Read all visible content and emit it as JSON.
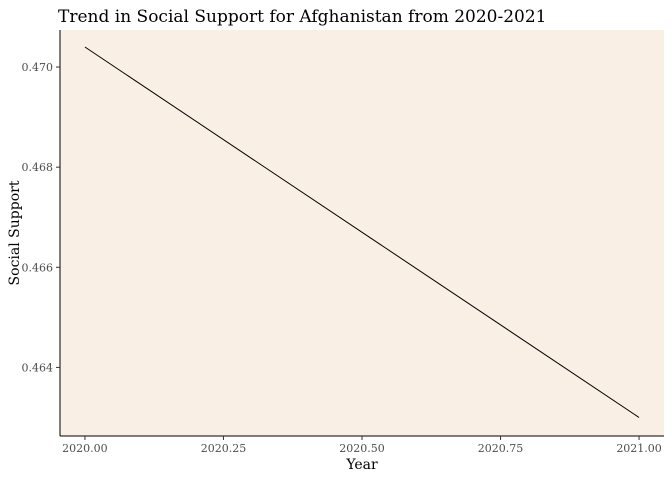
{
  "chart_data": {
    "type": "line",
    "title": "Trend in Social Support for Afghanistan from 2020-2021",
    "xlabel": "Year",
    "ylabel": "Social Support",
    "x_ticks": [
      "2020.00",
      "2020.25",
      "2020.50",
      "2020.75",
      "2021.00"
    ],
    "y_ticks": [
      "0.464",
      "0.466",
      "0.468",
      "0.470"
    ],
    "xlim": [
      2019.955,
      2021.045
    ],
    "ylim": [
      0.46263,
      0.47074
    ],
    "grid": false,
    "background_color": "#f9efe5",
    "line_color": "#000000",
    "series": [
      {
        "x": [
          2020,
          2021
        ],
        "y": [
          0.4704,
          0.463
        ]
      }
    ]
  }
}
